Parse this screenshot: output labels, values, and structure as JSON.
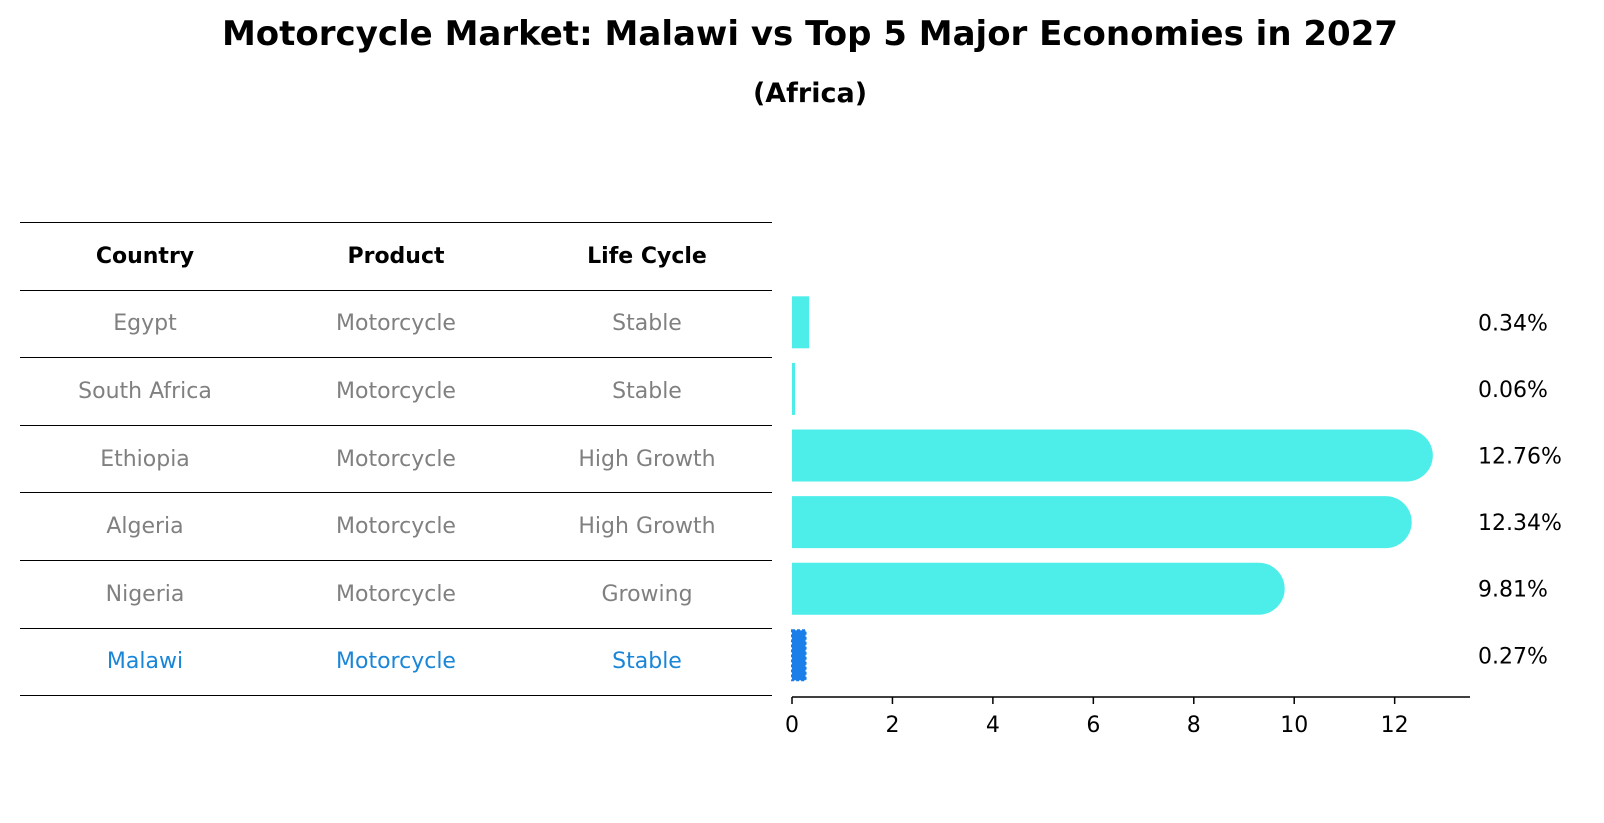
{
  "title": "Motorcycle Market: Malawi vs Top 5 Major Economies in 2027",
  "subtitle": "(Africa)",
  "table": {
    "headers": [
      "Country",
      "Product",
      "Life Cycle"
    ],
    "rows": [
      {
        "country": "Egypt",
        "product": "Motorcycle",
        "life_cycle": "Stable"
      },
      {
        "country": "South Africa",
        "product": "Motorcycle",
        "life_cycle": "Stable"
      },
      {
        "country": "Ethiopia",
        "product": "Motorcycle",
        "life_cycle": "High Growth"
      },
      {
        "country": "Algeria",
        "product": "Motorcycle",
        "life_cycle": "High Growth"
      },
      {
        "country": "Nigeria",
        "product": "Motorcycle",
        "life_cycle": "Growing"
      },
      {
        "country": "Malawi",
        "product": "Motorcycle",
        "life_cycle": "Stable"
      }
    ]
  },
  "colors": {
    "bar": "#4deeea",
    "highlight": "#1a7fe8",
    "highlight_text": "#1a86d8",
    "muted_text": "#808080"
  },
  "chart_data": {
    "type": "bar",
    "orientation": "horizontal",
    "categories": [
      "Egypt",
      "South Africa",
      "Ethiopia",
      "Algeria",
      "Nigeria",
      "Malawi"
    ],
    "values": [
      0.34,
      0.06,
      12.76,
      12.34,
      9.81,
      0.27
    ],
    "value_labels": [
      "0.34%",
      "0.06%",
      "12.76%",
      "12.34%",
      "9.81%",
      "0.27%"
    ],
    "highlight": "Malawi",
    "xlim": [
      0,
      13.5
    ],
    "xticks": [
      0,
      2,
      4,
      6,
      8,
      10,
      12
    ],
    "xlabel": "",
    "ylabel": "",
    "grid": false
  }
}
